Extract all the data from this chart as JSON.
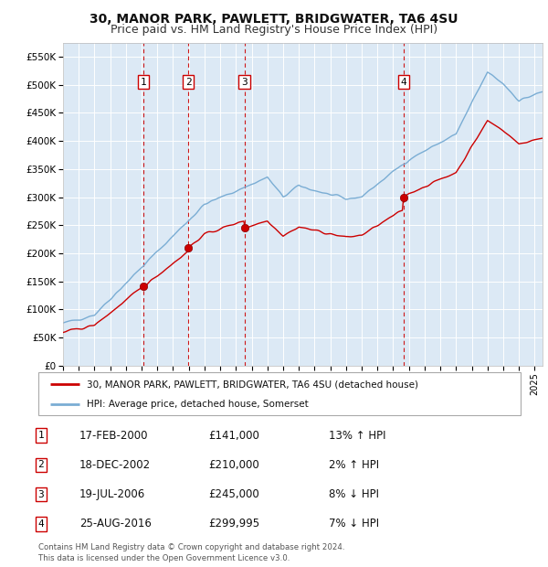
{
  "title": "30, MANOR PARK, PAWLETT, BRIDGWATER, TA6 4SU",
  "subtitle": "Price paid vs. HM Land Registry's House Price Index (HPI)",
  "title_fontsize": 10,
  "subtitle_fontsize": 9,
  "background_color": "#ffffff",
  "plot_bg_color": "#dce9f5",
  "grid_color": "#ffffff",
  "ylim": [
    0,
    575000
  ],
  "yticks": [
    0,
    50000,
    100000,
    150000,
    200000,
    250000,
    300000,
    350000,
    400000,
    450000,
    500000,
    550000
  ],
  "ytick_labels": [
    "£0",
    "£50K",
    "£100K",
    "£150K",
    "£200K",
    "£250K",
    "£300K",
    "£350K",
    "£400K",
    "£450K",
    "£500K",
    "£550K"
  ],
  "hpi_color": "#7aadd4",
  "price_color": "#cc0000",
  "purchases": [
    {
      "date_num": 2000.12,
      "price": 141000,
      "label": "1"
    },
    {
      "date_num": 2002.96,
      "price": 210000,
      "label": "2"
    },
    {
      "date_num": 2006.54,
      "price": 245000,
      "label": "3"
    },
    {
      "date_num": 2016.65,
      "price": 299995,
      "label": "4"
    }
  ],
  "legend_entries": [
    "30, MANOR PARK, PAWLETT, BRIDGWATER, TA6 4SU (detached house)",
    "HPI: Average price, detached house, Somerset"
  ],
  "table_rows": [
    {
      "num": "1",
      "date": "17-FEB-2000",
      "price": "£141,000",
      "hpi": "13% ↑ HPI"
    },
    {
      "num": "2",
      "date": "18-DEC-2002",
      "price": "£210,000",
      "hpi": "2% ↑ HPI"
    },
    {
      "num": "3",
      "date": "19-JUL-2006",
      "price": "£245,000",
      "hpi": "8% ↓ HPI"
    },
    {
      "num": "4",
      "date": "25-AUG-2016",
      "price": "£299,995",
      "hpi": "7% ↓ HPI"
    }
  ],
  "footer": "Contains HM Land Registry data © Crown copyright and database right 2024.\nThis data is licensed under the Open Government Licence v3.0.",
  "xmin": 1995.0,
  "xmax": 2025.5
}
